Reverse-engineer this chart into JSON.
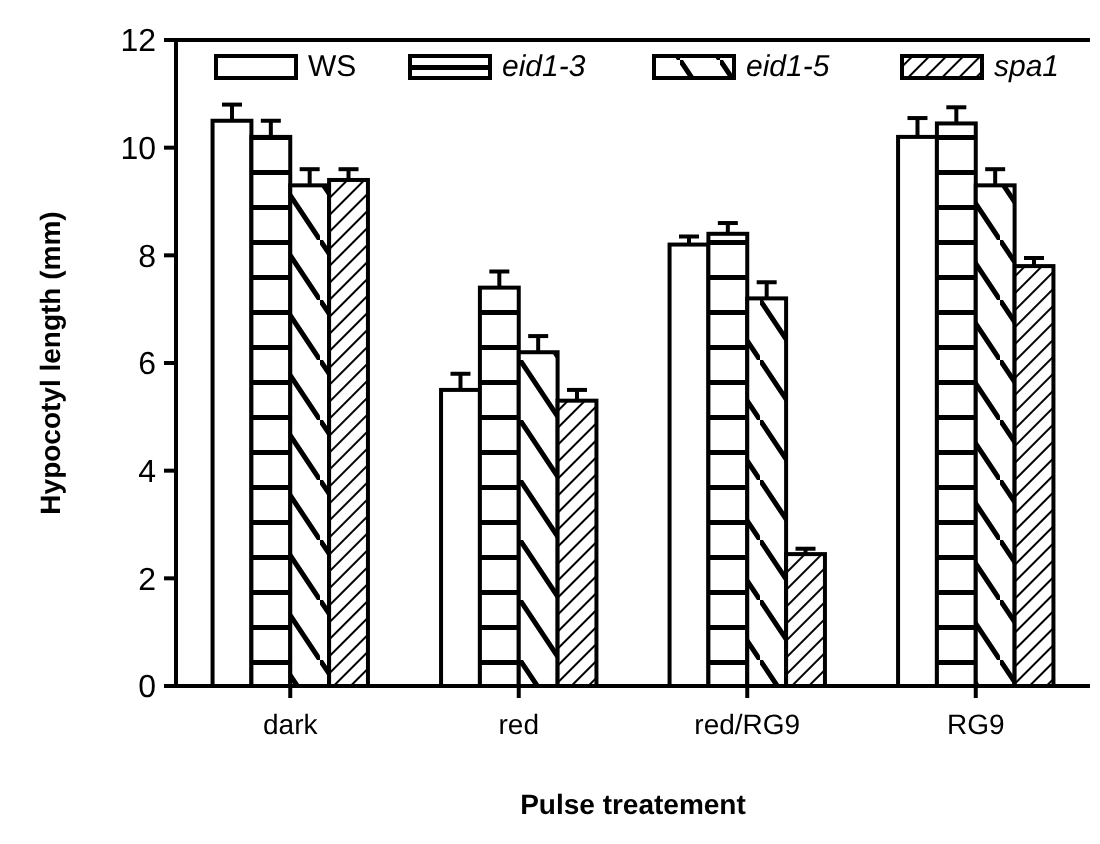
{
  "chart_data": {
    "type": "bar",
    "xlabel": "Pulse treatement",
    "ylabel": "Hypocotyl length (mm)",
    "categories": [
      "dark",
      "red",
      "red/RG9",
      "RG9"
    ],
    "series": [
      {
        "name": "WS",
        "color": "#ffffff",
        "values": [
          10.5,
          5.5,
          8.2,
          10.2
        ],
        "errors": [
          0.3,
          0.3,
          0.15,
          0.35
        ]
      },
      {
        "name": "eid1-3",
        "color": "#ffffff",
        "values": [
          10.2,
          7.4,
          8.4,
          10.45
        ],
        "errors": [
          0.3,
          0.3,
          0.2,
          0.3
        ]
      },
      {
        "name": "eid1-5",
        "color": "#ffffff",
        "values": [
          9.3,
          6.2,
          7.2,
          9.3
        ],
        "errors": [
          0.3,
          0.3,
          0.3,
          0.3
        ]
      },
      {
        "name": "spa1",
        "color": "#ffffff",
        "values": [
          9.4,
          5.3,
          2.45,
          7.8
        ],
        "errors": [
          0.2,
          0.2,
          0.1,
          0.15
        ]
      }
    ],
    "ylim": [
      0,
      12
    ],
    "yticks": [
      0,
      2,
      4,
      6,
      8,
      10,
      12
    ],
    "legend": "top",
    "grid": false
  }
}
